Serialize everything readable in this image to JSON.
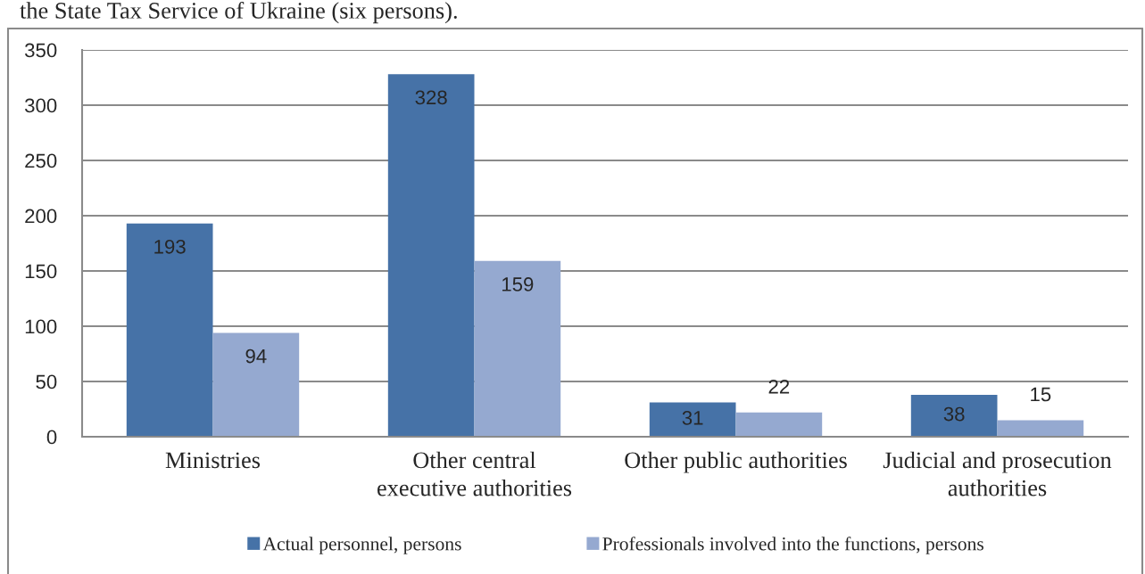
{
  "chart_data": {
    "type": "bar",
    "annotations": [
      "the State Tax Service of Ukraine (six persons)."
    ],
    "categories": [
      "Ministries",
      "Other central\nexecutive authorities",
      "Other public authorities",
      "Judicial and prosecution\nauthorities"
    ],
    "series": [
      {
        "name": "Actual personnel, persons",
        "color": "#4672a7",
        "values": [
          193,
          328,
          31,
          38
        ]
      },
      {
        "name": "Professionals involved into the functions, persons",
        "color": "#95a9d0",
        "values": [
          94,
          159,
          22,
          15
        ]
      }
    ],
    "ylim": [
      0,
      350
    ],
    "yticks": [
      0,
      50,
      100,
      150,
      200,
      250,
      300,
      350
    ],
    "grid": "y",
    "legend": "bottom",
    "data_labels": true
  }
}
